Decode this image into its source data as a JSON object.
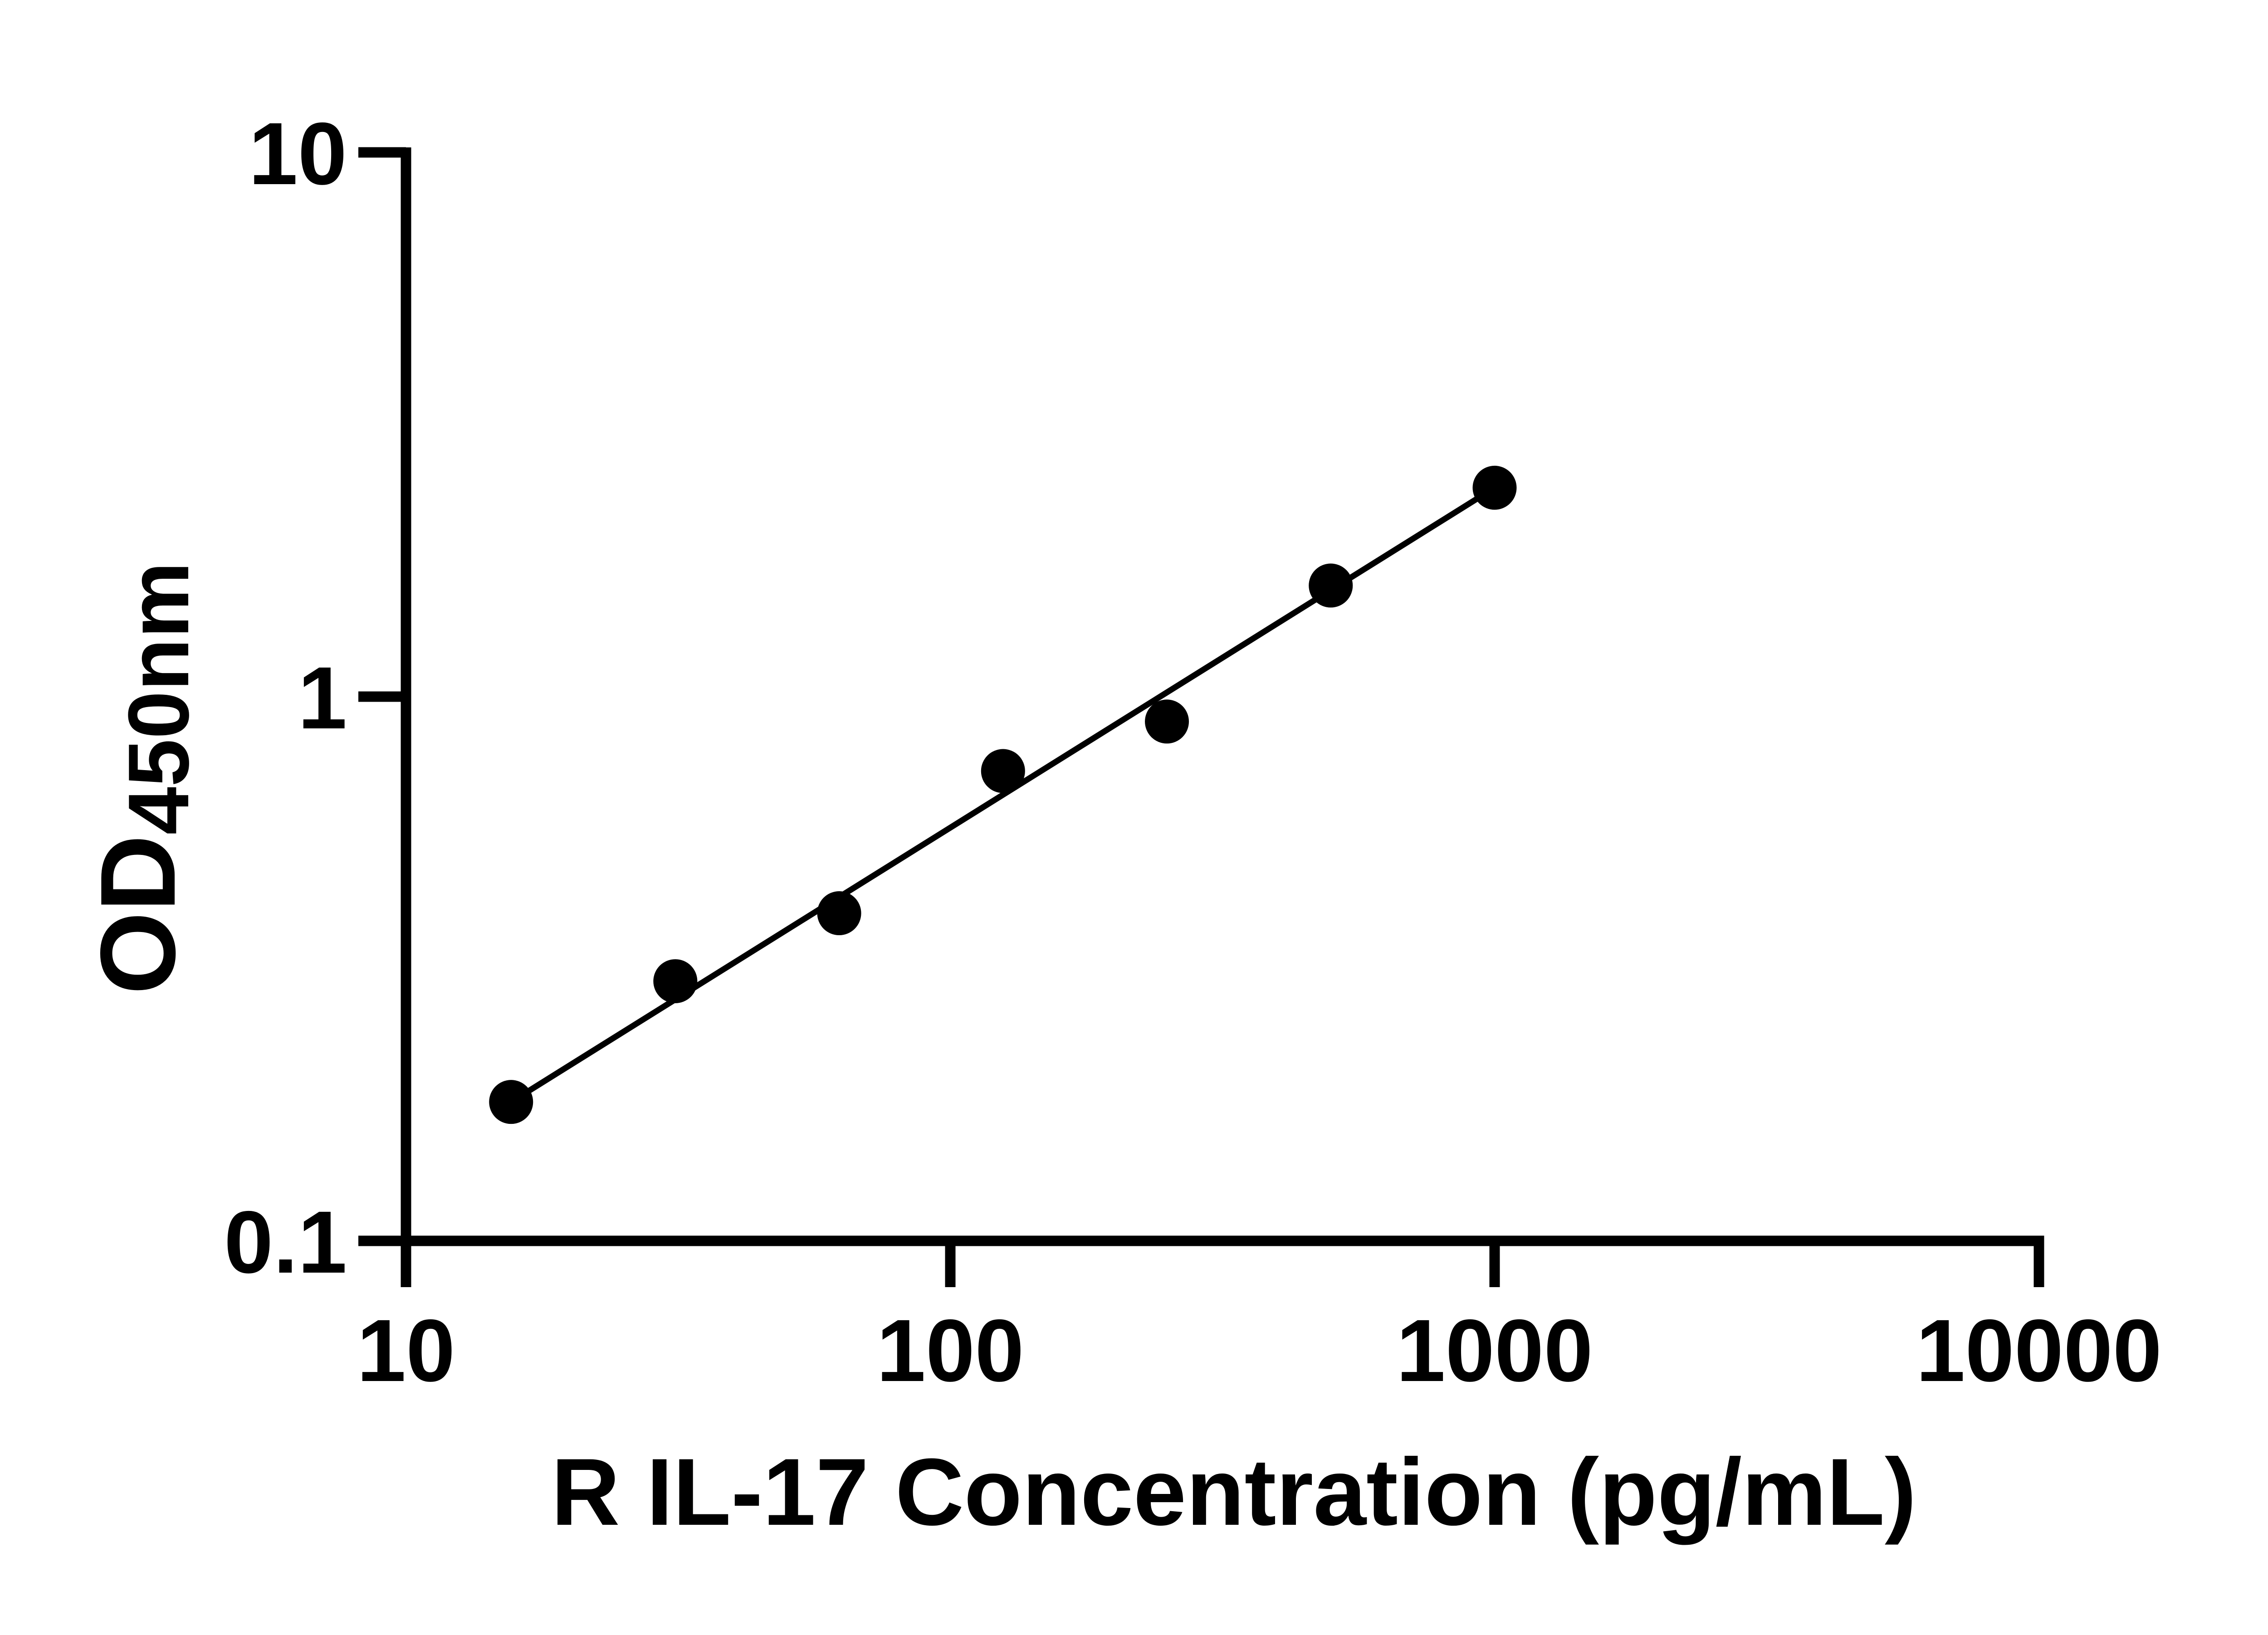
{
  "chart_data": {
    "type": "scatter",
    "title": "",
    "xlabel": "R IL-17 Concentration (pg/mL)",
    "ylabel_main": "OD",
    "ylabel_sub": "450nm",
    "x_scale": "log",
    "y_scale": "log",
    "x_range": [
      10,
      10000
    ],
    "y_range": [
      0.1,
      10
    ],
    "x_ticks": [
      "10",
      "100",
      "1000",
      "10000"
    ],
    "y_ticks": [
      "10",
      "1",
      "0.1"
    ],
    "grid": false,
    "legend": "none",
    "marker_color": "#000000",
    "line_color": "#000000",
    "axis_color": "#000000",
    "background_color": "#ffffff",
    "points": [
      {
        "x": 15.6,
        "y": 0.18
      },
      {
        "x": 31.25,
        "y": 0.3
      },
      {
        "x": 62.5,
        "y": 0.4
      },
      {
        "x": 125,
        "y": 0.73
      },
      {
        "x": 250,
        "y": 0.9
      },
      {
        "x": 500,
        "y": 1.6
      },
      {
        "x": 1000,
        "y": 2.42
      }
    ],
    "trendline": {
      "type": "linear-loglog",
      "from_point": 0,
      "to_point": 6
    }
  }
}
